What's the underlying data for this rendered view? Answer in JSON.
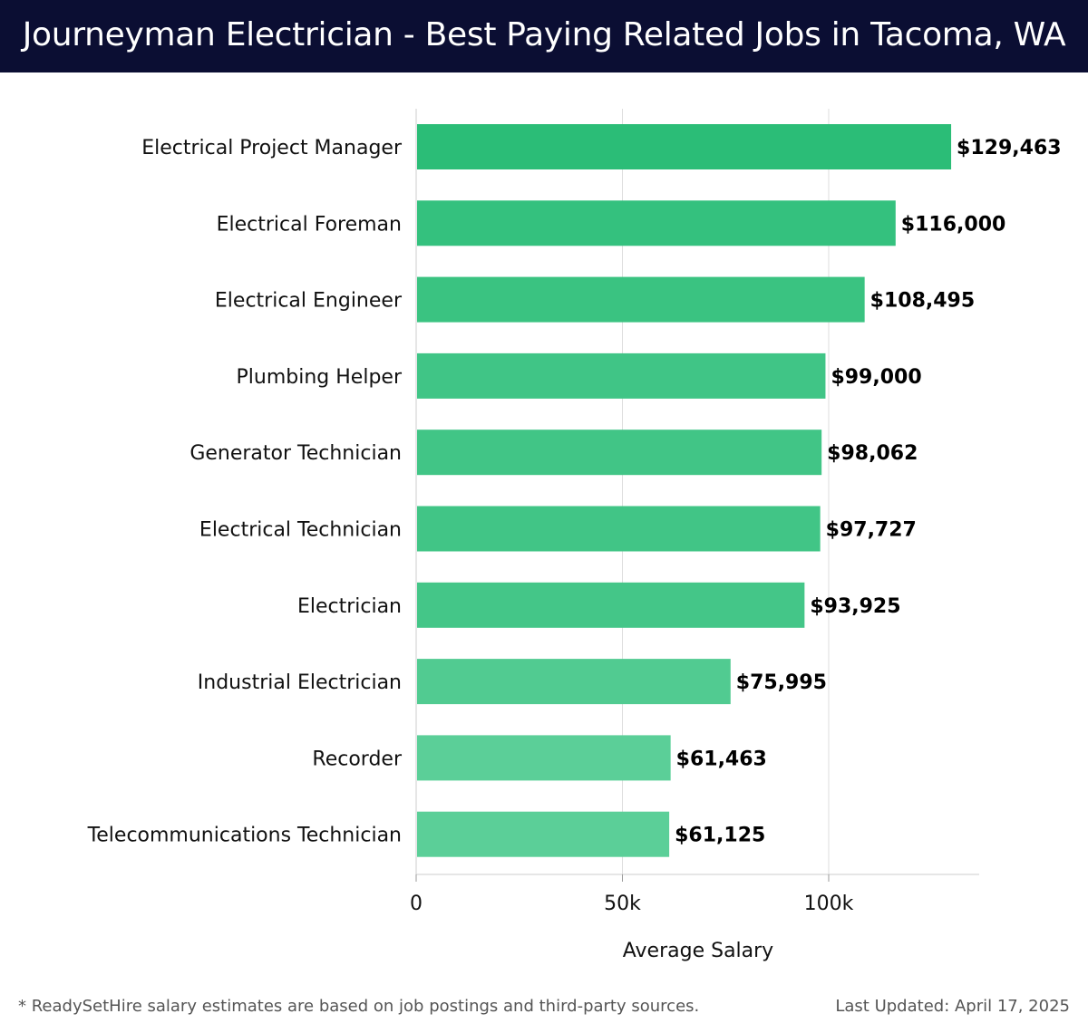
{
  "header": {
    "title": "Journeyman Electrician - Best Paying Related Jobs in Tacoma, WA"
  },
  "chart_data": {
    "type": "bar",
    "orientation": "horizontal",
    "title": "Journeyman Electrician - Best Paying Related Jobs in Tacoma, WA",
    "xlabel": "Average Salary",
    "ylabel": "",
    "xlim": [
      0,
      136000
    ],
    "x_ticks": [
      {
        "value": 0,
        "label": "0"
      },
      {
        "value": 50000,
        "label": "50k"
      },
      {
        "value": 100000,
        "label": "100k"
      }
    ],
    "grid": true,
    "categories": [
      "Electrical Project Manager",
      "Electrical Foreman",
      "Electrical Engineer",
      "Plumbing Helper",
      "Generator Technician",
      "Electrical Technician",
      "Electrician",
      "Industrial Electrician",
      "Recorder",
      "Telecommunications Technician"
    ],
    "values": [
      129463,
      116000,
      108495,
      99000,
      98062,
      97727,
      93925,
      75995,
      61463,
      61125
    ],
    "value_labels": [
      "$129,463",
      "$116,000",
      "$108,495",
      "$99,000",
      "$98,062",
      "$97,727",
      "$93,925",
      "$75,995",
      "$61,463",
      "$61,125"
    ],
    "colors": {
      "bar_high": "#2bbd77",
      "bar_low": "#5bcf98",
      "grid": "#dddddd",
      "axis": "#cccccc",
      "value_label": "#000000"
    }
  },
  "footer": {
    "note": "* ReadySetHire salary estimates are based on job postings and third-party sources.",
    "updated": "Last Updated: April 17, 2025"
  }
}
